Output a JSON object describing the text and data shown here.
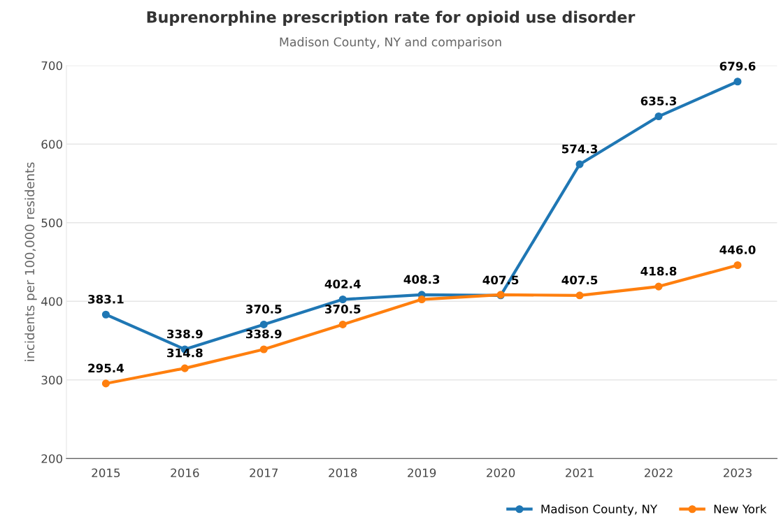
{
  "chart_data": {
    "type": "line",
    "title": "Buprenorphine prescription rate for opioid use disorder",
    "subtitle": "Madison County, NY and comparison",
    "ylabel": "incidents per 100,000 residents",
    "categories": [
      "2015",
      "2016",
      "2017",
      "2018",
      "2019",
      "2020",
      "2021",
      "2022",
      "2023"
    ],
    "series": [
      {
        "name": "Madison County, NY",
        "color": "#1f77b4",
        "values": [
          383.1,
          338.9,
          370.5,
          402.4,
          408.3,
          407.5,
          574.3,
          635.3,
          679.6
        ],
        "value_labels": [
          "383.1",
          "338.9",
          "370.5",
          "402.4",
          "408.3",
          "407.5",
          "574.3",
          "635.3",
          "679.6"
        ]
      },
      {
        "name": "New York",
        "color": "#ff7f0e",
        "values": [
          295.4,
          314.8,
          338.9,
          370.5,
          402.4,
          408.3,
          407.5,
          418.8,
          446.0
        ],
        "value_labels": [
          "295.4",
          "314.8",
          "338.9",
          "370.5",
          null,
          null,
          "407.5",
          "418.8",
          "446.0"
        ]
      }
    ],
    "ylim": [
      200,
      700
    ],
    "yticks": [
      200,
      300,
      400,
      500,
      600,
      700
    ],
    "grid": "y",
    "legend": "bottom right",
    "marker": "circle",
    "line_style": "solid"
  }
}
